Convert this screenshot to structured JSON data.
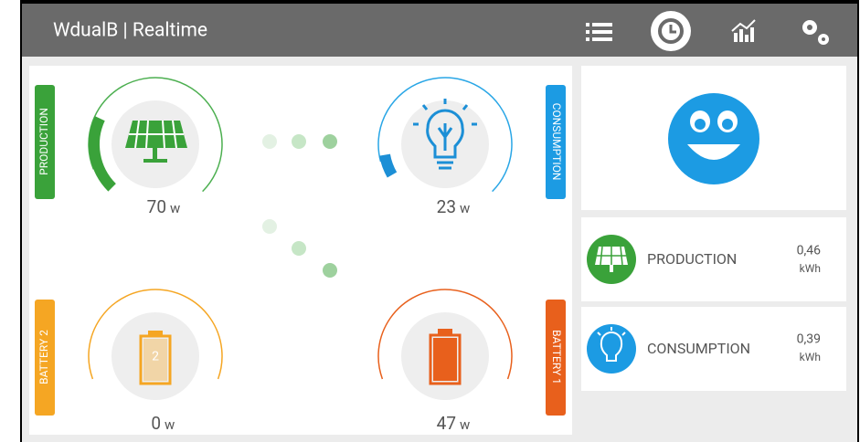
{
  "header": {
    "title": "WdualB | Realtime"
  },
  "flow": {
    "production": {
      "label": "PRODUCTION",
      "value": 70,
      "unit": "w"
    },
    "consumption": {
      "label": "CONSUMPTION",
      "value": 23,
      "unit": "w"
    },
    "battery_2": {
      "label": "BATTERY 2",
      "value": 0,
      "unit": "w",
      "icon_text": 2
    },
    "battery_1": {
      "label": "BATTERY 1",
      "value": 47,
      "unit": "w"
    }
  },
  "summary": {
    "production": {
      "label": "PRODUCTION",
      "value": "0,46",
      "unit": "kWh"
    },
    "consumption": {
      "label": "CONSUMPTION",
      "value": "0,39",
      "unit": "kWh"
    }
  }
}
